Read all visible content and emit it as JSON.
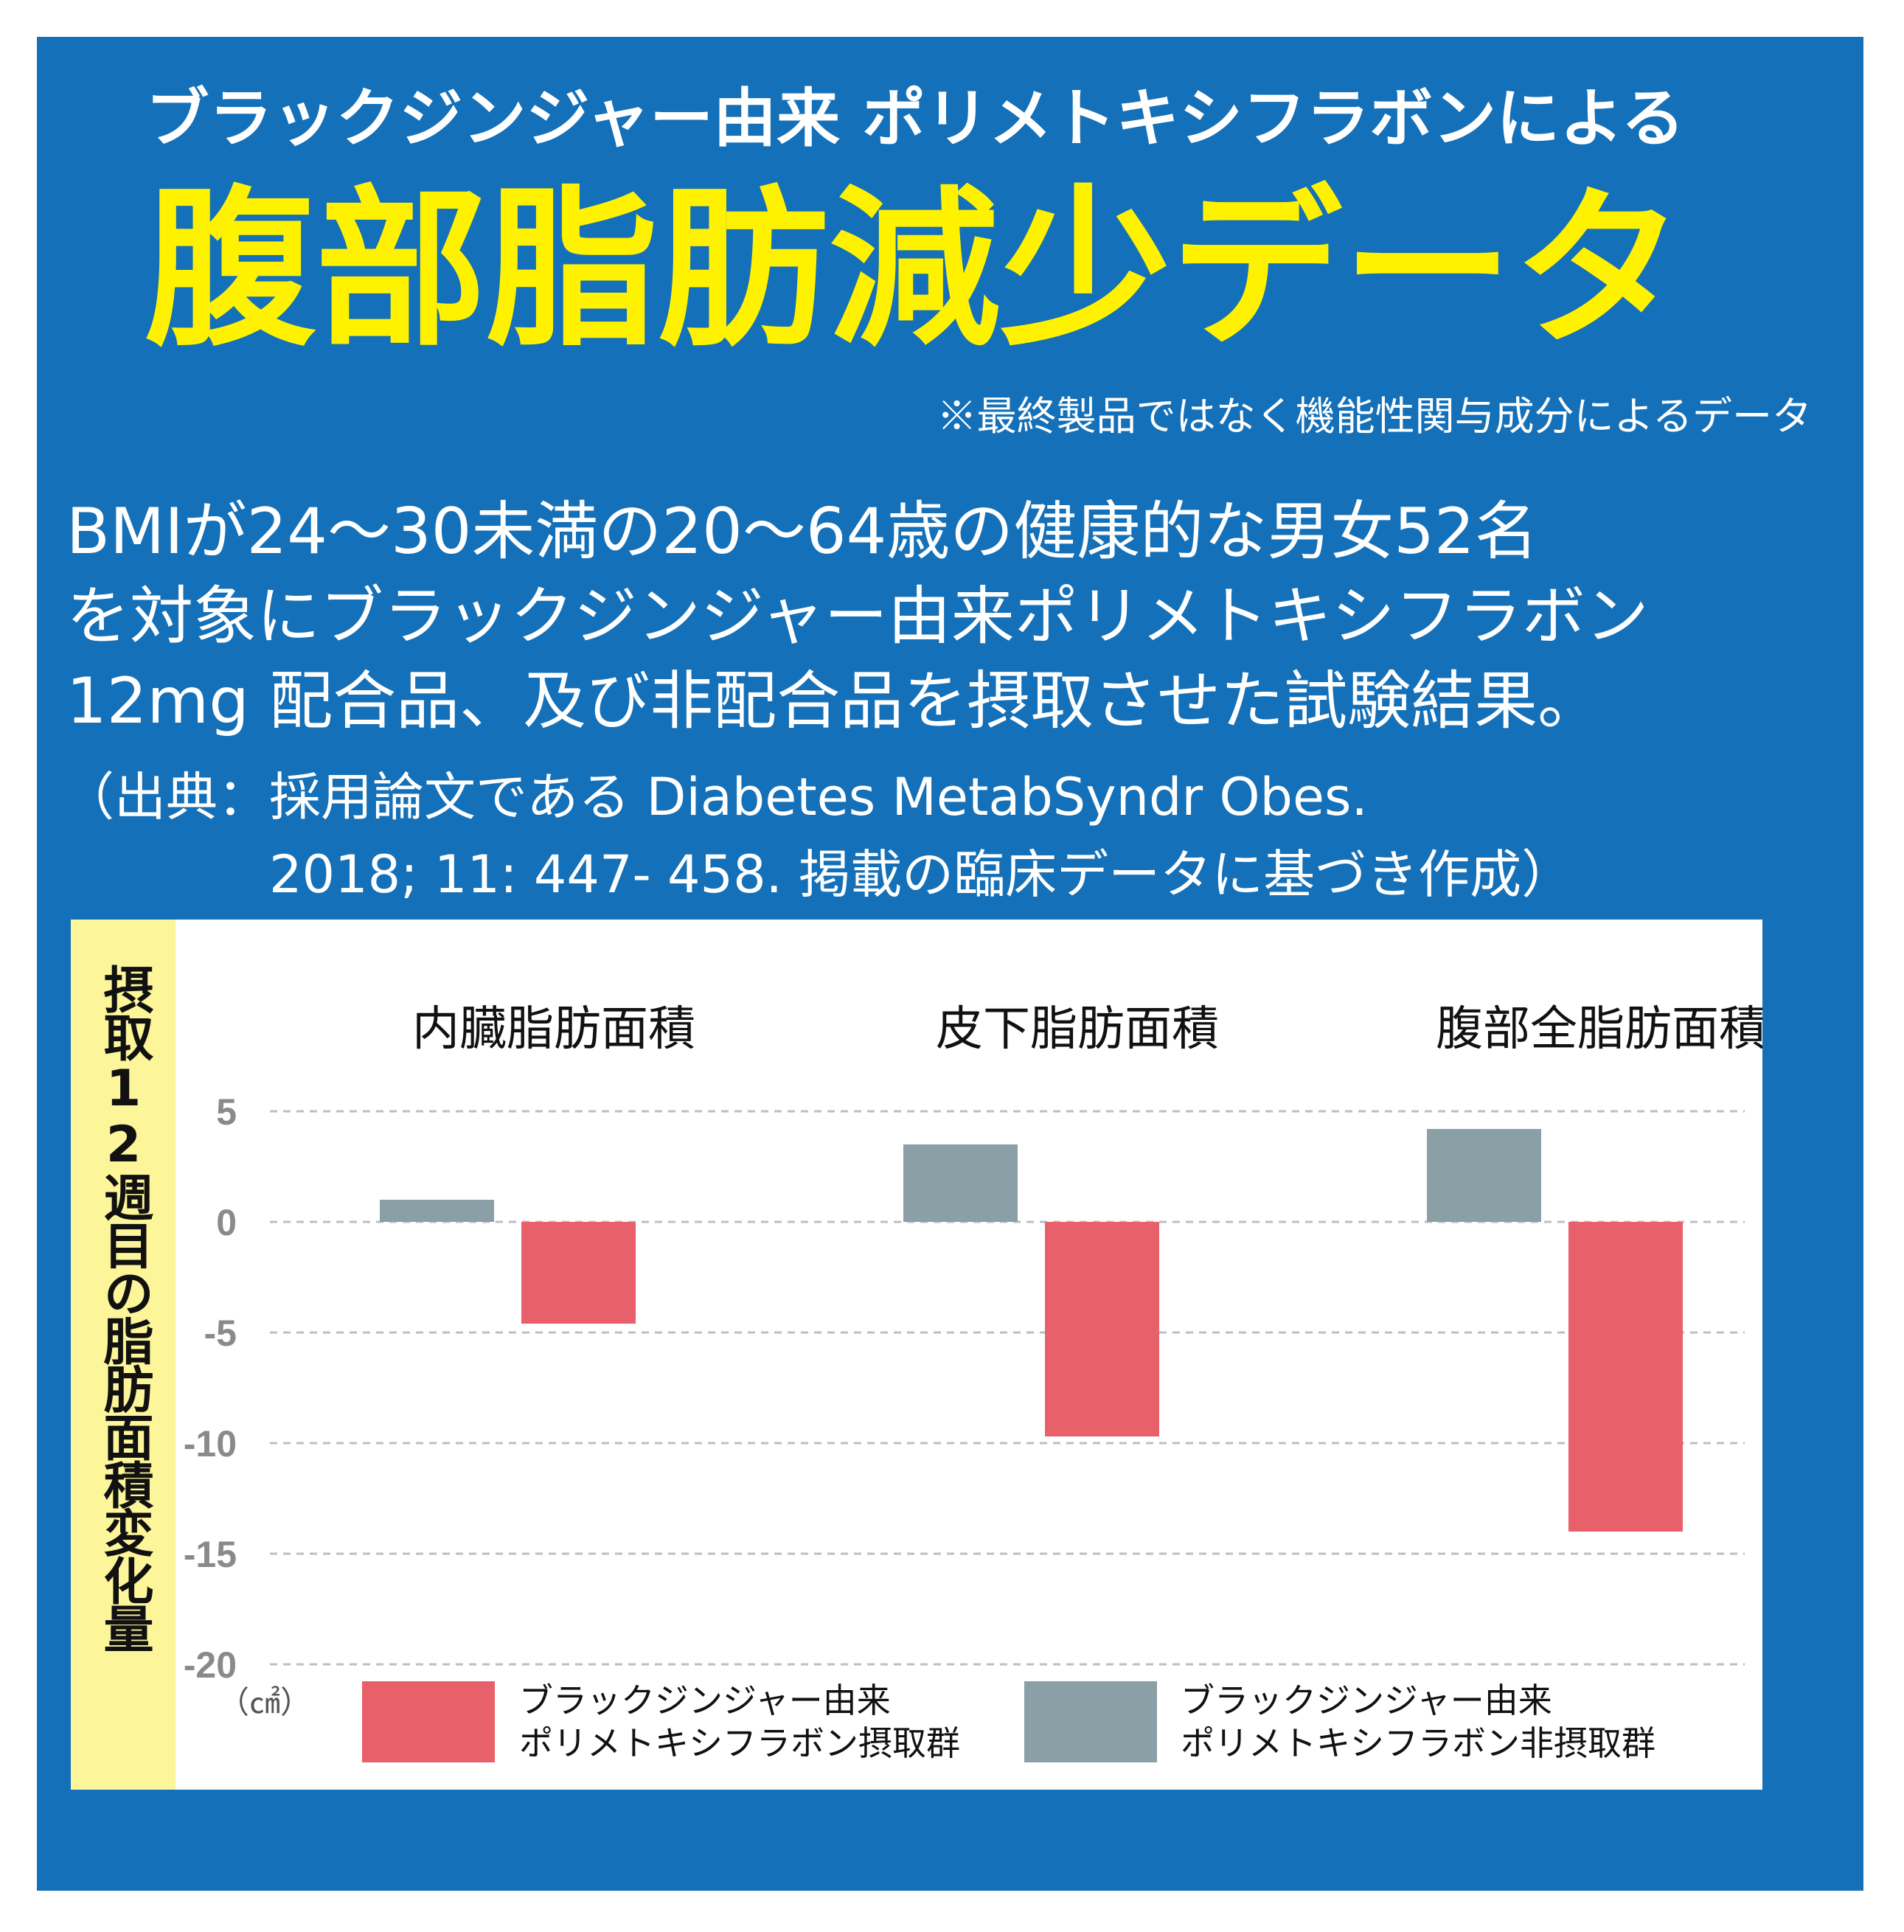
{
  "header": {
    "subtitle": "ブラックジンジャー由来 ポリメトキシフラボンによる",
    "title": "腹部脂肪減少データ",
    "note": "※最終製品ではなく機能性関与成分によるデータ"
  },
  "description": {
    "line1": "BMIが24〜30未満の20〜64歳の健康的な男女52名",
    "line2": "を対象にブラックジンジャー由来ポリメトキシフラボン",
    "line3": "12mg 配合品、及び非配合品を摂取させた試験結果。"
  },
  "source": {
    "line1": "（出典：採用論文である Diabetes MetabSyndr Obes.",
    "line2": "2018; 11: 447- 458. 掲載の臨床データに基づき作成）"
  },
  "colors": {
    "background": "#1470b8",
    "title": "#fff200",
    "axis_band": "#fdf59a",
    "intake": "#e8606a",
    "non_intake": "#8a9fa6"
  },
  "chart_data": {
    "type": "bar",
    "ylabel": "摂取12週目の脂肪面積変化量",
    "unit": "（㎠）",
    "categories": [
      "内臓脂肪面積",
      "皮下脂肪面積",
      "腹部全脂肪面積"
    ],
    "series": [
      {
        "name": "ブラックジンジャー由来ポリメトキシフラボン非摂取群",
        "values": [
          1.0,
          3.5,
          4.2
        ],
        "color": "#8a9fa6"
      },
      {
        "name": "ブラックジンジャー由来ポリメトキシフラボン摂取群",
        "values": [
          -4.6,
          -9.7,
          -14.0
        ],
        "color": "#e8606a"
      }
    ],
    "yticks": [
      5,
      0,
      -5,
      -10,
      -15,
      -20
    ],
    "ylim": [
      -20,
      5
    ],
    "grid": true,
    "legend": [
      {
        "line1": "ブラックジンジャー由来",
        "line2": "ポリメトキシフラボン摂取群",
        "color": "#e8606a"
      },
      {
        "line1": "ブラックジンジャー由来",
        "line2": "ポリメトキシフラボン非摂取群",
        "color": "#8a9fa6"
      }
    ]
  }
}
